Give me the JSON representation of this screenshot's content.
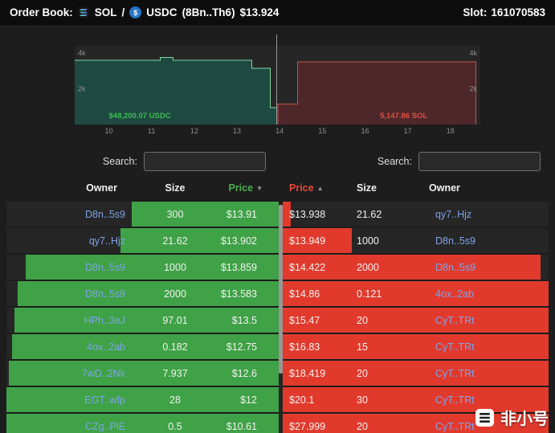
{
  "header": {
    "title": "Order Book:",
    "base_symbol": "SOL",
    "pair_separator": "/",
    "quote_symbol": "USDC",
    "market_address": "(8Bn..Th6)",
    "mid_price": "$13.924",
    "slot_label": "Slot:",
    "slot_value": "161070583",
    "usdc_glyph": "$"
  },
  "chart_data": {
    "type": "area",
    "title": "Order book depth chart",
    "xlim": [
      9.2,
      18.7
    ],
    "ylim": [
      0,
      4400
    ],
    "plot_bg": "#262626",
    "mid_price": 13.93,
    "grid": false,
    "x_ticks": [
      {
        "label": "10",
        "value": 10
      },
      {
        "label": "11",
        "value": 11
      },
      {
        "label": "12",
        "value": 12
      },
      {
        "label": "13",
        "value": 13
      },
      {
        "label": "14",
        "value": 14
      },
      {
        "label": "15",
        "value": 15
      },
      {
        "label": "16",
        "value": 16
      },
      {
        "label": "17",
        "value": 17
      },
      {
        "label": "18",
        "value": 18
      }
    ],
    "y_ticks": [
      {
        "label": "4k",
        "value": 4000
      },
      {
        "label": "2k",
        "value": 2000
      }
    ],
    "series": [
      {
        "name": "bids",
        "label": "$48,200.07 USDC",
        "label_color": "#3dbd54",
        "label_x": 10.0,
        "stroke": "#7fd6a2",
        "fill": "#1e4a41",
        "points": [
          [
            9.2,
            3600
          ],
          [
            11.2,
            3600
          ],
          [
            11.2,
            3750
          ],
          [
            11.5,
            3750
          ],
          [
            11.5,
            3600
          ],
          [
            13.35,
            3600
          ],
          [
            13.35,
            3150
          ],
          [
            13.78,
            3150
          ],
          [
            13.78,
            950
          ],
          [
            13.93,
            950
          ],
          [
            13.93,
            0
          ]
        ]
      },
      {
        "name": "asks",
        "label": "5,147.86 SOL",
        "label_color": "#e05142",
        "label_x": 16.35,
        "stroke": "#c4524a",
        "fill": "#4e272a",
        "points": [
          [
            13.96,
            0
          ],
          [
            13.96,
            1150
          ],
          [
            14.42,
            1150
          ],
          [
            14.42,
            3500
          ],
          [
            18.6,
            3500
          ],
          [
            18.6,
            0
          ]
        ]
      }
    ]
  },
  "bids": {
    "search_label": "Search:",
    "search_value": "",
    "columns": [
      "Owner",
      "Size",
      "Price"
    ],
    "sort_icon": "▼",
    "rows": [
      {
        "owner": "D8n..5s9",
        "size": "300",
        "price": "$13.91",
        "depth_pct": 54
      },
      {
        "owner": "qy7..Hjz",
        "size": "21.62",
        "price": "$13.902",
        "depth_pct": 58
      },
      {
        "owner": "D8n..5s9",
        "size": "1000",
        "price": "$13.859",
        "depth_pct": 93
      },
      {
        "owner": "D8n..5s9",
        "size": "2000",
        "price": "$13.583",
        "depth_pct": 96
      },
      {
        "owner": "HPh..3eJ",
        "size": "97.01",
        "price": "$13.5",
        "depth_pct": 97
      },
      {
        "owner": "4ox..2ab",
        "size": "0.182",
        "price": "$12.75",
        "depth_pct": 98
      },
      {
        "owner": "7wD..2Nk",
        "size": "7.937",
        "price": "$12.6",
        "depth_pct": 99
      },
      {
        "owner": "EGT..wfp",
        "size": "28",
        "price": "$12",
        "depth_pct": 100
      },
      {
        "owner": "CZg..PiE",
        "size": "0.5",
        "price": "$10.61",
        "depth_pct": 100
      }
    ]
  },
  "asks": {
    "search_label": "Search:",
    "search_value": "",
    "columns": [
      "Price",
      "Size",
      "Owner"
    ],
    "sort_icon": "▲",
    "rows": [
      {
        "price": "$13.938",
        "size": "21.62",
        "owner": "qy7..Hjz",
        "depth_pct": 3
      },
      {
        "price": "$13.949",
        "size": "1000",
        "owner": "D8n..5s9",
        "depth_pct": 26
      },
      {
        "price": "$14.422",
        "size": "2000",
        "owner": "D8n..5s9",
        "depth_pct": 97
      },
      {
        "price": "$14.86",
        "size": "0.121",
        "owner": "4ox..2ab",
        "depth_pct": 100
      },
      {
        "price": "$15.47",
        "size": "20",
        "owner": "CyT..TRt",
        "depth_pct": 100
      },
      {
        "price": "$16.83",
        "size": "15",
        "owner": "CyT..TRt",
        "depth_pct": 100
      },
      {
        "price": "$18.419",
        "size": "20",
        "owner": "CyT..TRt",
        "depth_pct": 100
      },
      {
        "price": "$20.1",
        "size": "30",
        "owner": "CyT..TRt",
        "depth_pct": 100
      },
      {
        "price": "$27.999",
        "size": "20",
        "owner": "CyT..TRt",
        "depth_pct": 100
      }
    ]
  },
  "watermark": {
    "text": "非小号"
  },
  "colors": {
    "bid_bar": "#3fa246",
    "ask_bar": "#e13a2d",
    "bid_price_header": "#4caf50",
    "ask_price_header": "#e8493a",
    "owner_link": "#7fa3e8",
    "bid_chart_label": "#3dbd54",
    "ask_chart_label": "#e05142"
  }
}
